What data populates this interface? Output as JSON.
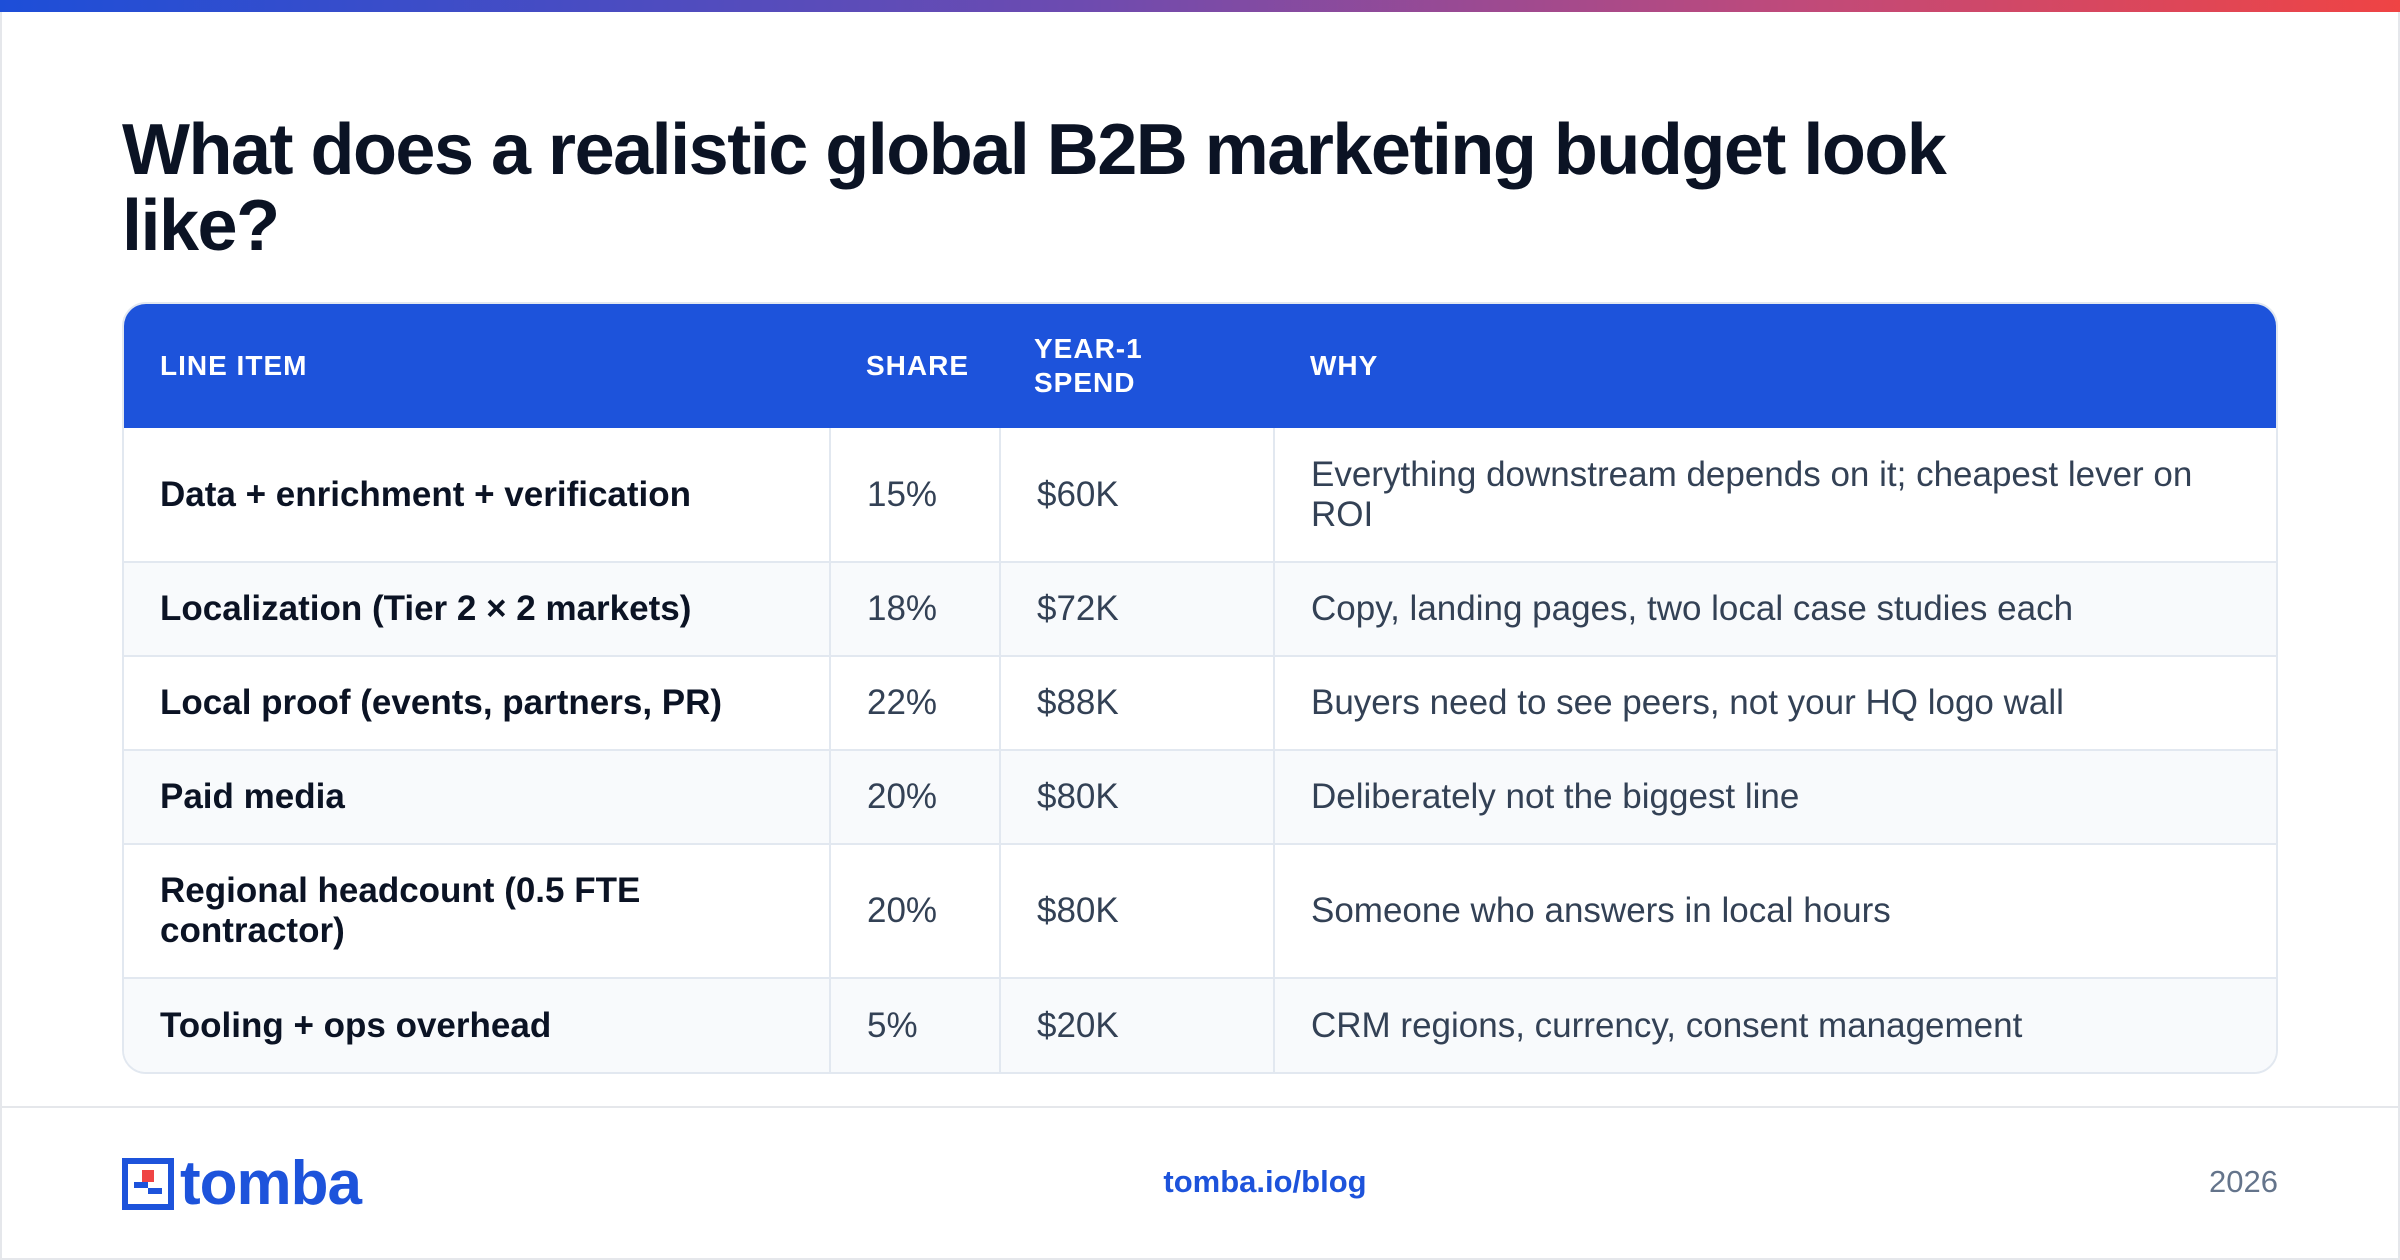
{
  "title": "What does a realistic global B2B marketing budget look like?",
  "table": {
    "headers": {
      "line_item": "LINE ITEM",
      "share": "SHARE",
      "spend_line1": "YEAR-1",
      "spend_line2": "SPEND",
      "why": "WHY"
    },
    "rows": [
      {
        "item": "Data + enrichment + verification",
        "share": "15%",
        "spend": "$60K",
        "why": "Everything downstream depends on it; cheapest lever on ROI"
      },
      {
        "item": "Localization (Tier 2 × 2 markets)",
        "share": "18%",
        "spend": "$72K",
        "why": "Copy, landing pages, two local case studies each"
      },
      {
        "item": "Local proof (events, partners, PR)",
        "share": "22%",
        "spend": "$88K",
        "why": "Buyers need to see peers, not your HQ logo wall"
      },
      {
        "item": "Paid media",
        "share": "20%",
        "spend": "$80K",
        "why": "Deliberately not the biggest line"
      },
      {
        "item": "Regional headcount (0.5 FTE contractor)",
        "share": "20%",
        "spend": "$80K",
        "why": "Someone who answers in local hours"
      },
      {
        "item": "Tooling + ops overhead",
        "share": "5%",
        "spend": "$20K",
        "why": "CRM regions, currency, consent management"
      }
    ]
  },
  "footer": {
    "logo_text": "tomba",
    "link": "tomba.io/blog",
    "year": "2026"
  },
  "colors": {
    "accent": "#1d53db",
    "title": "#0b1324",
    "gradient": [
      "#1d4ed8",
      "#6d4bb0",
      "#c04a7a",
      "#ef4444"
    ]
  },
  "icons": {
    "logo_mark": "tomba-logo-mark"
  }
}
